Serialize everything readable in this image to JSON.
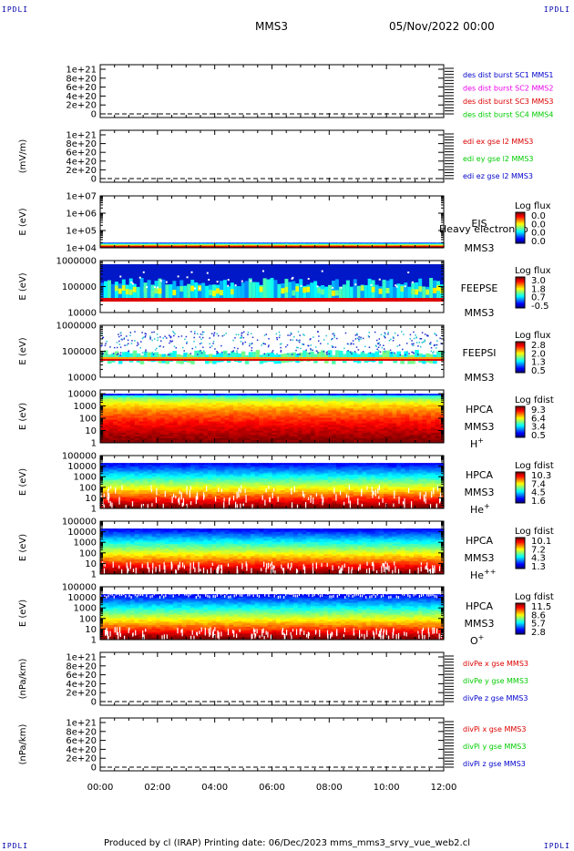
{
  "corners": {
    "tl": "IPDLI",
    "tr": "IPDLI",
    "bl": "IPDLI",
    "br": "IPDLI"
  },
  "header": {
    "spacecraft": "MMS3",
    "date": "05/Nov/2022 00:00"
  },
  "footer": {
    "text": "Produced by cl (IRAP)   Printing date: 06/Dec/2023   mms_mms3_srvy_vue_web2.cl"
  },
  "xaxis": {
    "ticks": [
      "00:00",
      "02:00",
      "04:00",
      "06:00",
      "08:00",
      "10:00",
      "12:00"
    ],
    "range_hours": [
      0,
      12
    ]
  },
  "colors": {
    "red": "#dd0000",
    "green": "#00cc00",
    "blue": "#0000cc",
    "magenta": "#ee00ee"
  },
  "chart_data": [
    {
      "type": "line",
      "ylabel": "",
      "yticks": [
        "0",
        "2e+20",
        "4e+20",
        "6e+20",
        "8e+20",
        "1e+21"
      ],
      "ylim": [
        0,
        1e+21
      ],
      "legend": [
        {
          "name": "des dist burst SC1 MMS1",
          "color": "#0000cc"
        },
        {
          "name": "des dist burst SC2 MMS2",
          "color": "#ee00ee"
        },
        {
          "name": "des dist burst SC3 MMS3",
          "color": "#dd0000"
        },
        {
          "name": "des dist burst SC4 MMS4",
          "color": "#00cc00"
        }
      ],
      "series": []
    },
    {
      "type": "line",
      "ylabel": "(mV/m)",
      "yticks": [
        "0",
        "2e+20",
        "4e+20",
        "6e+20",
        "8e+20",
        "1e+21"
      ],
      "ylim": [
        0,
        1e+21
      ],
      "legend": [
        {
          "name": "edi ex gse l2 MMS3",
          "color": "#dd0000"
        },
        {
          "name": "edi ey gse l2 MMS3",
          "color": "#00cc00"
        },
        {
          "name": "edi ez gse l2 MMS3",
          "color": "#0000cc"
        }
      ],
      "series": []
    },
    {
      "type": "heatmap",
      "ylabel": "E (eV)",
      "yticks": [
        "1e+04",
        "1e+05",
        "1e+06",
        "1e+07"
      ],
      "ylim": [
        10000.0,
        10000000.0
      ],
      "yscale": "log",
      "labels": [
        "EIS",
        "MMS3"
      ],
      "overlay": "Heavy electron to",
      "colorbar": {
        "title": "Log flux",
        "ticks": [
          "0.0",
          "0.0",
          "0.0",
          "0.0"
        ]
      }
    },
    {
      "type": "heatmap",
      "ylabel": "E (eV)",
      "yticks": [
        "10000",
        "100000",
        "1000000"
      ],
      "ylim": [
        10000,
        1000000
      ],
      "yscale": "log",
      "labels": [
        "FEEPSE",
        "MMS3"
      ],
      "colorbar": {
        "title": "Log flux",
        "ticks": [
          "3.0",
          "1.8",
          "0.7",
          "-0.5"
        ]
      }
    },
    {
      "type": "heatmap",
      "ylabel": "E (eV)",
      "yticks": [
        "10000",
        "100000",
        "1000000"
      ],
      "ylim": [
        10000,
        1000000
      ],
      "yscale": "log",
      "labels": [
        "FEEPSI",
        "MMS3"
      ],
      "colorbar": {
        "title": "Log flux",
        "ticks": [
          "2.8",
          "2.0",
          "1.3",
          "0.5"
        ]
      }
    },
    {
      "type": "heatmap",
      "ylabel": "E (eV)",
      "yticks": [
        "1",
        "10",
        "100",
        "1000",
        "10000"
      ],
      "ylim": [
        1,
        20000
      ],
      "yscale": "log",
      "labels": [
        "HPCA",
        "MMS3"
      ],
      "species": "H",
      "charge": "+",
      "colorbar": {
        "title": "Log fdist",
        "ticks": [
          "9.3",
          "6.4",
          "3.4",
          "0.5"
        ]
      }
    },
    {
      "type": "heatmap",
      "ylabel": "E (eV)",
      "yticks": [
        "1",
        "10",
        "100",
        "1000",
        "10000",
        "100000"
      ],
      "ylim": [
        1,
        100000
      ],
      "yscale": "log",
      "labels": [
        "HPCA",
        "MMS3"
      ],
      "species": "He",
      "charge": "+",
      "colorbar": {
        "title": "Log fdist",
        "ticks": [
          "10.3",
          "7.4",
          "4.5",
          "1.6"
        ]
      }
    },
    {
      "type": "heatmap",
      "ylabel": "E (eV)",
      "yticks": [
        "1",
        "10",
        "100",
        "1000",
        "10000",
        "100000"
      ],
      "ylim": [
        1,
        100000
      ],
      "yscale": "log",
      "labels": [
        "HPCA",
        "MMS3"
      ],
      "species": "He",
      "charge": "++",
      "colorbar": {
        "title": "Log fdist",
        "ticks": [
          "10.1",
          "7.2",
          "4.3",
          "1.3"
        ]
      }
    },
    {
      "type": "heatmap",
      "ylabel": "E (eV)",
      "yticks": [
        "1",
        "10",
        "100",
        "1000",
        "10000",
        "100000"
      ],
      "ylim": [
        1,
        100000
      ],
      "yscale": "log",
      "labels": [
        "HPCA",
        "MMS3"
      ],
      "species": "O",
      "charge": "+",
      "colorbar": {
        "title": "Log fdist",
        "ticks": [
          "11.5",
          "8.6",
          "5.7",
          "2.8"
        ]
      }
    },
    {
      "type": "line",
      "ylabel": "(nPa/km)",
      "yticks": [
        "0",
        "2e+20",
        "4e+20",
        "6e+20",
        "8e+20",
        "1e+21"
      ],
      "ylim": [
        0,
        1e+21
      ],
      "legend": [
        {
          "name": "divPe x gse MMS3",
          "color": "#dd0000"
        },
        {
          "name": "divPe y gse MMS3",
          "color": "#00cc00"
        },
        {
          "name": "divPe z gse MMS3",
          "color": "#0000cc"
        }
      ],
      "series": []
    },
    {
      "type": "line",
      "ylabel": "(nPa/km)",
      "yticks": [
        "0",
        "2e+20",
        "4e+20",
        "6e+20",
        "8e+20",
        "1e+21"
      ],
      "ylim": [
        0,
        1e+21
      ],
      "legend": [
        {
          "name": "divPi x gse MMS3",
          "color": "#dd0000"
        },
        {
          "name": "divPi y gse MMS3",
          "color": "#00cc00"
        },
        {
          "name": "divPi z gse MMS3",
          "color": "#0000cc"
        }
      ],
      "series": []
    }
  ]
}
